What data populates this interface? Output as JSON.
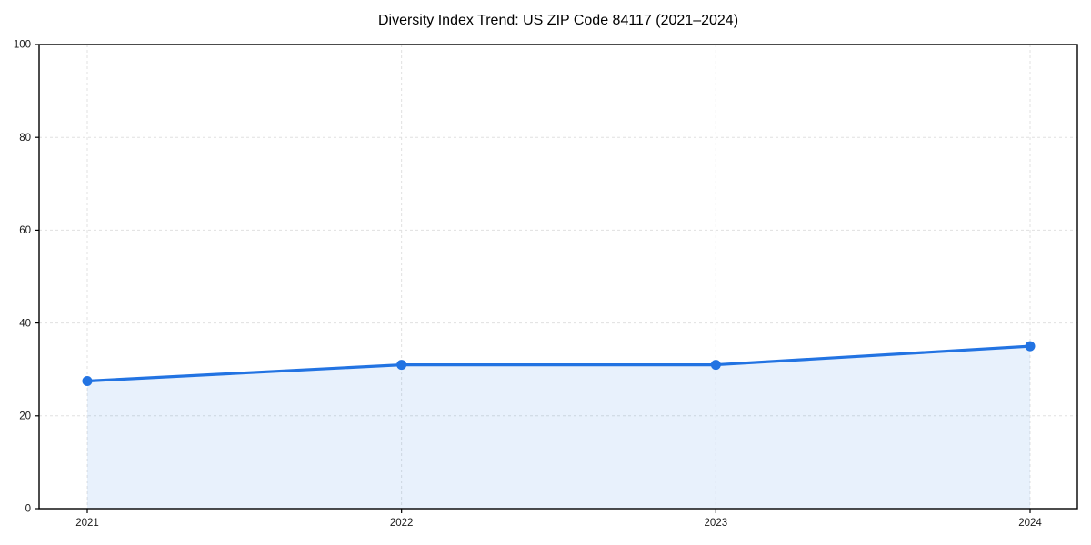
{
  "chart_data": {
    "type": "line",
    "title": "Diversity Index Trend: US ZIP Code 84117 (2021–2024)",
    "x": [
      2021,
      2022,
      2023,
      2024
    ],
    "series": [
      {
        "name": "Diversity Index",
        "values": [
          27.5,
          31,
          31,
          35
        ]
      }
    ],
    "xlabel": "",
    "ylabel": "",
    "ylim": [
      0,
      100
    ],
    "yticks": [
      0,
      20,
      40,
      60,
      80,
      100
    ],
    "xticks": [
      2021,
      2022,
      2023,
      2024
    ],
    "grid": "dashed-both-axes",
    "legend": "none",
    "marker": "circle",
    "area_fill": true,
    "colors": {
      "line": "#2273e2",
      "marker": "#2273e2",
      "area_fill": "#2273e2",
      "area_fill_opacity": 0.1,
      "gridline": "#e0e0e0",
      "spine": "#000000",
      "tick_label": "#1a1a1a",
      "title": "#000000",
      "background": "#ffffff"
    }
  }
}
